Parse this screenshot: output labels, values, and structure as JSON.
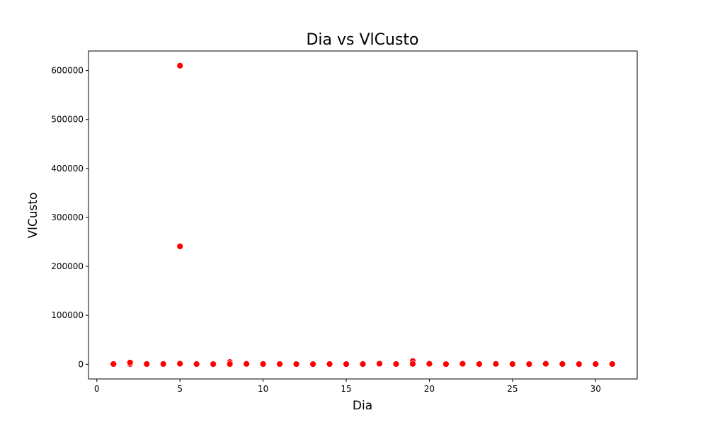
{
  "chart_data": {
    "type": "scatter",
    "title": "Dia vs VlCusto",
    "xlabel": "Dia",
    "ylabel": "VlCusto",
    "xlim": [
      -0.5,
      32.5
    ],
    "ylim": [
      -30000,
      640000
    ],
    "xticks": [
      0,
      5,
      10,
      15,
      20,
      25,
      30
    ],
    "yticks": [
      0,
      100000,
      200000,
      300000,
      400000,
      500000,
      600000
    ],
    "grid": false,
    "legend": "none",
    "marker_color": "#ff0000",
    "marker_edge_color": "#ffffff",
    "series": [
      {
        "x": [
          1,
          2,
          2,
          3,
          4,
          5,
          5,
          5,
          5,
          5,
          6,
          7,
          8,
          8,
          9,
          10,
          11,
          12,
          13,
          14,
          15,
          16,
          17,
          18,
          19,
          19,
          20,
          21,
          22,
          23,
          24,
          25,
          26,
          27,
          28,
          29,
          30,
          31
        ],
        "y": [
          500,
          400,
          3500,
          500,
          600,
          610000,
          241000,
          2500,
          500,
          1200,
          400,
          300,
          4500,
          400,
          800,
          500,
          400,
          300,
          300,
          400,
          300,
          400,
          1200,
          500,
          6500,
          700,
          1000,
          300,
          1000,
          400,
          700,
          400,
          300,
          1000,
          600,
          300,
          400,
          500
        ]
      }
    ]
  }
}
